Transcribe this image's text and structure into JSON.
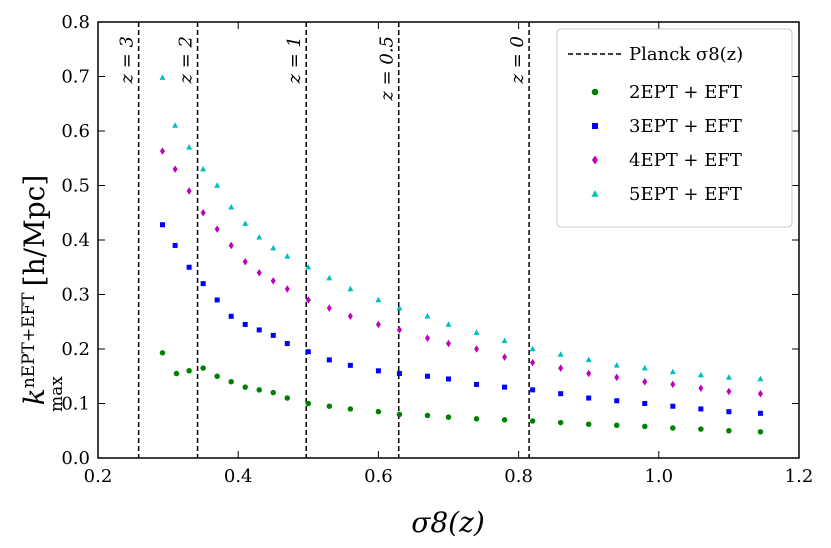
{
  "chart_data": {
    "type": "scatter",
    "xlabel": "σ8(z)",
    "ylabel": "k_max^{nEPT+EFT} [h/Mpc]",
    "ylabel_main": "k",
    "ylabel_sub": "max",
    "ylabel_sup": "nEPT+EFT",
    "ylabel_unit": "[h/Mpc]",
    "xlim": [
      0.2,
      1.2
    ],
    "ylim": [
      0.0,
      0.8
    ],
    "xticks": [
      "0.2",
      "0.4",
      "0.6",
      "0.8",
      "1.0",
      "1.2"
    ],
    "yticks": [
      "0.0",
      "0.1",
      "0.2",
      "0.3",
      "0.4",
      "0.5",
      "0.6",
      "0.7",
      "0.8"
    ],
    "planck_lines": [
      {
        "x": 0.258,
        "label": "z = 3"
      },
      {
        "x": 0.342,
        "label": "z = 2"
      },
      {
        "x": 0.497,
        "label": "z = 1"
      },
      {
        "x": 0.629,
        "label": "z = 0.5"
      },
      {
        "x": 0.815,
        "label": "z = 0"
      }
    ],
    "legend": {
      "placement": "top-right",
      "planck_label": "Planck σ8(z)",
      "entries": [
        "2EPT + EFT",
        "3EPT + EFT",
        "4EPT + EFT",
        "5EPT + EFT"
      ]
    },
    "series": [
      {
        "name": "2EPT + EFT",
        "color": "#008000",
        "marker": "circle",
        "points": [
          [
            0.292,
            0.193
          ],
          [
            0.312,
            0.155
          ],
          [
            0.33,
            0.16
          ],
          [
            0.35,
            0.165
          ],
          [
            0.37,
            0.15
          ],
          [
            0.39,
            0.14
          ],
          [
            0.41,
            0.13
          ],
          [
            0.43,
            0.125
          ],
          [
            0.45,
            0.12
          ],
          [
            0.47,
            0.11
          ],
          [
            0.5,
            0.1
          ],
          [
            0.53,
            0.095
          ],
          [
            0.56,
            0.09
          ],
          [
            0.6,
            0.085
          ],
          [
            0.63,
            0.08
          ],
          [
            0.67,
            0.078
          ],
          [
            0.7,
            0.075
          ],
          [
            0.74,
            0.072
          ],
          [
            0.78,
            0.07
          ],
          [
            0.82,
            0.068
          ],
          [
            0.86,
            0.065
          ],
          [
            0.9,
            0.062
          ],
          [
            0.94,
            0.06
          ],
          [
            0.98,
            0.058
          ],
          [
            1.02,
            0.055
          ],
          [
            1.06,
            0.053
          ],
          [
            1.1,
            0.05
          ],
          [
            1.145,
            0.048
          ]
        ]
      },
      {
        "name": "3EPT + EFT",
        "color": "#0000ff",
        "marker": "square",
        "points": [
          [
            0.292,
            0.428
          ],
          [
            0.31,
            0.39
          ],
          [
            0.33,
            0.35
          ],
          [
            0.35,
            0.32
          ],
          [
            0.37,
            0.29
          ],
          [
            0.39,
            0.26
          ],
          [
            0.41,
            0.245
          ],
          [
            0.43,
            0.235
          ],
          [
            0.45,
            0.225
          ],
          [
            0.47,
            0.21
          ],
          [
            0.5,
            0.195
          ],
          [
            0.53,
            0.18
          ],
          [
            0.56,
            0.17
          ],
          [
            0.6,
            0.16
          ],
          [
            0.63,
            0.155
          ],
          [
            0.67,
            0.15
          ],
          [
            0.7,
            0.145
          ],
          [
            0.74,
            0.135
          ],
          [
            0.78,
            0.13
          ],
          [
            0.82,
            0.125
          ],
          [
            0.86,
            0.118
          ],
          [
            0.9,
            0.11
          ],
          [
            0.94,
            0.105
          ],
          [
            0.98,
            0.1
          ],
          [
            1.02,
            0.095
          ],
          [
            1.06,
            0.09
          ],
          [
            1.1,
            0.085
          ],
          [
            1.145,
            0.082
          ]
        ]
      },
      {
        "name": "4EPT + EFT",
        "color": "#c000c0",
        "marker": "diamond",
        "points": [
          [
            0.292,
            0.563
          ],
          [
            0.31,
            0.53
          ],
          [
            0.33,
            0.49
          ],
          [
            0.35,
            0.45
          ],
          [
            0.37,
            0.42
          ],
          [
            0.39,
            0.39
          ],
          [
            0.41,
            0.36
          ],
          [
            0.43,
            0.34
          ],
          [
            0.45,
            0.325
          ],
          [
            0.47,
            0.31
          ],
          [
            0.5,
            0.29
          ],
          [
            0.53,
            0.275
          ],
          [
            0.56,
            0.26
          ],
          [
            0.6,
            0.245
          ],
          [
            0.63,
            0.235
          ],
          [
            0.67,
            0.22
          ],
          [
            0.7,
            0.21
          ],
          [
            0.74,
            0.2
          ],
          [
            0.78,
            0.185
          ],
          [
            0.82,
            0.175
          ],
          [
            0.86,
            0.165
          ],
          [
            0.9,
            0.155
          ],
          [
            0.94,
            0.148
          ],
          [
            0.98,
            0.14
          ],
          [
            1.02,
            0.135
          ],
          [
            1.06,
            0.128
          ],
          [
            1.1,
            0.122
          ],
          [
            1.145,
            0.118
          ]
        ]
      },
      {
        "name": "5EPT + EFT",
        "color": "#00bfbf",
        "marker": "triangle",
        "points": [
          [
            0.292,
            0.698
          ],
          [
            0.31,
            0.61
          ],
          [
            0.33,
            0.57
          ],
          [
            0.35,
            0.53
          ],
          [
            0.37,
            0.5
          ],
          [
            0.39,
            0.46
          ],
          [
            0.41,
            0.43
          ],
          [
            0.43,
            0.405
          ],
          [
            0.45,
            0.385
          ],
          [
            0.47,
            0.37
          ],
          [
            0.5,
            0.35
          ],
          [
            0.53,
            0.33
          ],
          [
            0.56,
            0.31
          ],
          [
            0.6,
            0.29
          ],
          [
            0.63,
            0.275
          ],
          [
            0.67,
            0.26
          ],
          [
            0.7,
            0.245
          ],
          [
            0.74,
            0.23
          ],
          [
            0.78,
            0.215
          ],
          [
            0.82,
            0.2
          ],
          [
            0.86,
            0.19
          ],
          [
            0.9,
            0.18
          ],
          [
            0.94,
            0.17
          ],
          [
            0.98,
            0.165
          ],
          [
            1.02,
            0.158
          ],
          [
            1.06,
            0.152
          ],
          [
            1.1,
            0.148
          ],
          [
            1.145,
            0.145
          ]
        ]
      }
    ]
  }
}
